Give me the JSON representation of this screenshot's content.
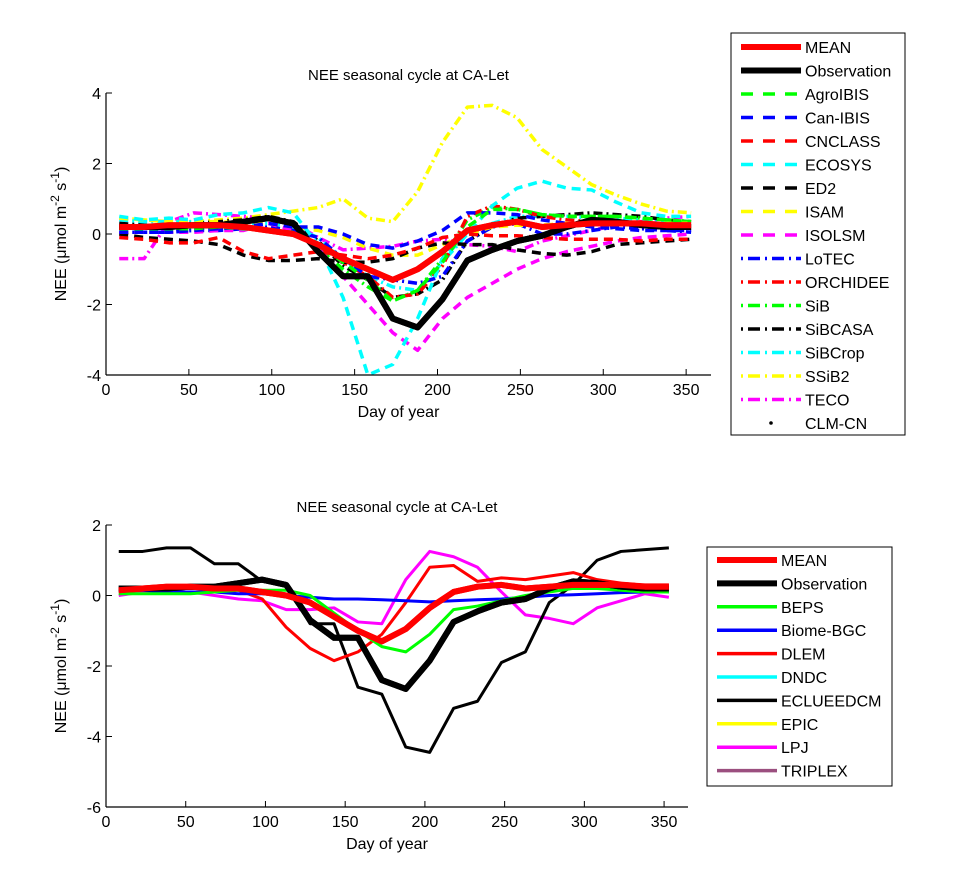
{
  "chart_data": [
    {
      "type": "line",
      "title": "NEE seasonal cycle at CA-Let",
      "xlabel": "Day of year",
      "ylabel": "NEE (μmol m^-2 s^-1)",
      "xlim": [
        0,
        365
      ],
      "ylim": [
        -4,
        4
      ],
      "xticks": [
        0,
        50,
        100,
        150,
        200,
        250,
        300,
        350
      ],
      "yticks": [
        -4,
        -2,
        0,
        2,
        4
      ],
      "grid": false,
      "legend_position": "outside-right",
      "x": [
        8,
        23,
        38,
        53,
        68,
        83,
        98,
        113,
        128,
        143,
        158,
        173,
        188,
        203,
        218,
        233,
        248,
        263,
        278,
        293,
        308,
        323,
        338,
        353
      ],
      "series": [
        {
          "name": "MEAN",
          "color": "#ff0000",
          "style": "solid",
          "width": "thick",
          "values": [
            0.2,
            0.2,
            0.25,
            0.25,
            0.25,
            0.2,
            0.1,
            0.0,
            -0.3,
            -0.7,
            -1.0,
            -1.3,
            -1.0,
            -0.5,
            0.1,
            0.25,
            0.35,
            0.2,
            0.25,
            0.3,
            0.3,
            0.3,
            0.25,
            0.25
          ]
        },
        {
          "name": "Observation",
          "color": "#000000",
          "style": "solid",
          "width": "thick",
          "values": [
            0.2,
            0.2,
            0.2,
            0.25,
            0.25,
            0.35,
            0.45,
            0.3,
            -0.5,
            -1.2,
            -1.2,
            -2.4,
            -2.65,
            -1.85,
            -0.75,
            -0.45,
            -0.2,
            -0.05,
            0.2,
            0.4,
            0.35,
            0.25,
            0.2,
            0.2
          ]
        },
        {
          "name": "AgroIBIS",
          "color": "#00ff00",
          "style": "dashed",
          "values": [
            0.15,
            0.15,
            0.15,
            0.15,
            0.2,
            0.15,
            0.1,
            0.05,
            -0.3,
            -0.8,
            -1.3,
            -1.9,
            -1.6,
            -0.8,
            0.2,
            0.7,
            0.7,
            0.55,
            0.5,
            0.5,
            0.5,
            0.45,
            0.4,
            0.35
          ]
        },
        {
          "name": "Can-IBIS",
          "color": "#0000ff",
          "style": "dashed",
          "values": [
            0.05,
            0.05,
            0.05,
            0.1,
            0.15,
            0.2,
            0.3,
            0.2,
            0.2,
            0.0,
            -0.3,
            -0.4,
            -0.2,
            0.1,
            0.6,
            0.6,
            0.55,
            0.4,
            0.3,
            0.2,
            0.15,
            0.1,
            0.1,
            0.1
          ]
        },
        {
          "name": "CNCLASS",
          "color": "#ff0000",
          "style": "dashed",
          "values": [
            -0.1,
            -0.15,
            -0.25,
            -0.25,
            -0.1,
            -0.5,
            -0.7,
            -0.6,
            -0.5,
            -0.6,
            -0.7,
            -0.6,
            -0.4,
            -0.1,
            0.0,
            -0.05,
            -0.05,
            -0.1,
            -0.15,
            -0.15,
            -0.15,
            -0.2,
            -0.15,
            -0.15
          ]
        },
        {
          "name": "ECOSYS",
          "color": "#00ffff",
          "style": "dashed",
          "values": [
            0.5,
            0.4,
            0.45,
            0.4,
            0.55,
            0.6,
            0.75,
            0.6,
            -0.3,
            -1.8,
            -4.0,
            -3.7,
            -2.4,
            -0.7,
            0.0,
            0.8,
            1.3,
            1.5,
            1.3,
            1.25,
            0.9,
            0.6,
            0.5,
            0.5
          ]
        },
        {
          "name": "ED2",
          "color": "#000000",
          "style": "dashed",
          "values": [
            0.0,
            -0.1,
            -0.15,
            -0.2,
            -0.3,
            -0.6,
            -0.75,
            -0.75,
            -0.7,
            -0.8,
            -0.8,
            -0.7,
            -0.4,
            -0.25,
            -0.3,
            -0.3,
            -0.45,
            -0.55,
            -0.6,
            -0.5,
            -0.3,
            -0.25,
            -0.2,
            -0.15
          ]
        },
        {
          "name": "ISAM",
          "color": "#ffff00",
          "style": "dashed",
          "values": [
            0.45,
            0.4,
            0.35,
            0.35,
            0.35,
            0.3,
            0.3,
            0.2,
            0.1,
            -0.1,
            -0.4,
            -0.6,
            -0.6,
            -0.3,
            0.0,
            0.2,
            0.25,
            0.25,
            0.3,
            0.3,
            0.3,
            0.3,
            0.3,
            0.3
          ]
        },
        {
          "name": "ISOLSM",
          "color": "#ff00ff",
          "style": "dashed",
          "values": [
            0.05,
            0.05,
            0.05,
            0.05,
            0.1,
            0.1,
            0.3,
            0.1,
            -0.4,
            -1.2,
            -2.0,
            -2.8,
            -3.3,
            -2.4,
            -1.8,
            -1.4,
            -1.0,
            -0.7,
            -0.5,
            -0.35,
            -0.2,
            -0.1,
            -0.05,
            0.0
          ]
        },
        {
          "name": "LoTEC",
          "color": "#0000ff",
          "style": "dashdot",
          "values": [
            0.05,
            0.05,
            0.05,
            0.1,
            0.1,
            0.15,
            0.2,
            0.1,
            -0.1,
            -0.7,
            -1.2,
            -1.3,
            -1.4,
            -1.2,
            -0.2,
            0.2,
            0.3,
            0.0,
            0.0,
            0.1,
            0.2,
            0.15,
            0.1,
            0.05
          ]
        },
        {
          "name": "ORCHIDEE",
          "color": "#ff0000",
          "style": "dashdot",
          "values": [
            0.2,
            0.2,
            0.25,
            0.25,
            0.25,
            0.2,
            0.1,
            0.0,
            -0.3,
            -0.8,
            -1.2,
            -1.8,
            -1.7,
            -0.9,
            0.5,
            0.8,
            0.7,
            0.5,
            0.4,
            0.35,
            0.3,
            0.3,
            0.25,
            0.25
          ]
        },
        {
          "name": "SiB",
          "color": "#00ff00",
          "style": "dashdot",
          "values": [
            0.2,
            0.2,
            0.15,
            0.15,
            0.2,
            0.15,
            0.1,
            0.05,
            -0.4,
            -1.0,
            -1.5,
            -1.9,
            -1.6,
            -0.7,
            0.4,
            0.75,
            0.7,
            0.55,
            0.5,
            0.5,
            0.5,
            0.45,
            0.4,
            0.35
          ]
        },
        {
          "name": "SiBCASA",
          "color": "#000000",
          "style": "dashdot",
          "values": [
            0.3,
            0.25,
            0.25,
            0.3,
            0.35,
            0.4,
            0.5,
            0.35,
            -0.2,
            -0.9,
            -1.3,
            -1.8,
            -1.7,
            -1.3,
            -0.2,
            0.2,
            0.45,
            0.5,
            0.55,
            0.6,
            0.55,
            0.5,
            0.4,
            0.35
          ]
        },
        {
          "name": "SiBCrop",
          "color": "#00ffff",
          "style": "dashdot",
          "values": [
            0.4,
            0.35,
            0.35,
            0.35,
            0.3,
            0.3,
            0.3,
            0.2,
            -0.1,
            -0.7,
            -1.2,
            -1.5,
            -1.6,
            -0.8,
            0.0,
            0.3,
            0.5,
            0.5,
            0.5,
            0.45,
            0.45,
            0.4,
            0.35,
            0.3
          ]
        },
        {
          "name": "SSiB2",
          "color": "#ffff00",
          "style": "dashdot",
          "values": [
            0.45,
            0.4,
            0.35,
            0.35,
            0.4,
            0.45,
            0.55,
            0.65,
            0.75,
            1.0,
            0.45,
            0.35,
            1.2,
            2.6,
            3.6,
            3.65,
            3.3,
            2.4,
            1.9,
            1.4,
            1.1,
            0.85,
            0.65,
            0.6
          ]
        },
        {
          "name": "TECO",
          "color": "#ff00ff",
          "style": "dashdot",
          "values": [
            -0.7,
            -0.7,
            0.35,
            0.6,
            0.55,
            0.5,
            0.45,
            0.3,
            -0.1,
            -0.45,
            -0.4,
            -0.35,
            -0.2,
            -0.15,
            -0.3,
            -0.35,
            -0.5,
            -0.2,
            -0.05,
            0.1,
            0.25,
            0.35,
            0.45,
            0.5
          ]
        },
        {
          "name": "CLM-CN",
          "color": "#000000",
          "style": "dot",
          "values": []
        }
      ]
    },
    {
      "type": "line",
      "title": "NEE seasonal cycle at CA-Let",
      "xlabel": "Day of year",
      "ylabel": "NEE (μmol m^-2 s^-1)",
      "xlim": [
        0,
        365
      ],
      "ylim": [
        -6,
        2
      ],
      "xticks": [
        0,
        50,
        100,
        150,
        200,
        250,
        300,
        350
      ],
      "yticks": [
        -6,
        -4,
        -2,
        0,
        2
      ],
      "grid": false,
      "legend_position": "outside-right",
      "x": [
        8,
        23,
        38,
        53,
        68,
        83,
        98,
        113,
        128,
        143,
        158,
        173,
        188,
        203,
        218,
        233,
        248,
        263,
        278,
        293,
        308,
        323,
        338,
        353
      ],
      "series": [
        {
          "name": "MEAN",
          "color": "#ff0000",
          "style": "solid",
          "width": "thick",
          "values": [
            0.15,
            0.2,
            0.25,
            0.25,
            0.2,
            0.2,
            0.1,
            0.0,
            -0.2,
            -0.6,
            -1.0,
            -1.3,
            -0.95,
            -0.35,
            0.1,
            0.25,
            0.3,
            0.2,
            0.25,
            0.3,
            0.3,
            0.3,
            0.25,
            0.25
          ]
        },
        {
          "name": "Observation",
          "color": "#000000",
          "style": "solid",
          "width": "thick",
          "values": [
            0.2,
            0.2,
            0.2,
            0.25,
            0.25,
            0.35,
            0.45,
            0.3,
            -0.7,
            -1.2,
            -1.2,
            -2.4,
            -2.65,
            -1.85,
            -0.75,
            -0.45,
            -0.2,
            -0.1,
            0.2,
            0.4,
            0.35,
            0.25,
            0.2,
            0.2
          ]
        },
        {
          "name": "BEPS",
          "color": "#00ff00",
          "style": "solid",
          "values": [
            0.05,
            0.05,
            0.05,
            0.05,
            0.1,
            0.15,
            0.15,
            0.15,
            0.0,
            -0.5,
            -1.0,
            -1.45,
            -1.6,
            -1.1,
            -0.4,
            -0.3,
            -0.15,
            0.0,
            0.1,
            0.2,
            0.2,
            0.15,
            0.1,
            0.1
          ]
        },
        {
          "name": "Biome-BGC",
          "color": "#0000ff",
          "style": "solid",
          "values": [
            0.15,
            0.15,
            0.1,
            0.1,
            0.1,
            0.05,
            0.05,
            0.0,
            -0.05,
            -0.1,
            -0.1,
            -0.12,
            -0.15,
            -0.18,
            -0.15,
            -0.12,
            -0.1,
            -0.05,
            0.0,
            0.02,
            0.05,
            0.08,
            0.1,
            0.1
          ]
        },
        {
          "name": "DLEM",
          "color": "#ff0000",
          "style": "solid",
          "values": [
            0.1,
            0.15,
            0.2,
            0.2,
            0.2,
            0.15,
            -0.1,
            -0.9,
            -1.5,
            -1.85,
            -1.6,
            -1.1,
            -0.2,
            0.8,
            0.85,
            0.4,
            0.5,
            0.45,
            0.55,
            0.65,
            0.45,
            0.35,
            0.3,
            0.3
          ]
        },
        {
          "name": "DNDC",
          "color": "#00ffff",
          "style": "solid",
          "values": []
        },
        {
          "name": "ECLUEEDCM",
          "color": "#000000",
          "style": "solid",
          "values": [
            1.25,
            1.25,
            1.35,
            1.35,
            0.9,
            0.9,
            0.4,
            0.3,
            -0.8,
            -0.8,
            -2.6,
            -2.8,
            -4.3,
            -4.45,
            -3.2,
            -3.0,
            -1.9,
            -1.6,
            -0.2,
            0.3,
            1.0,
            1.25,
            1.3,
            1.35
          ]
        },
        {
          "name": "EPIC",
          "color": "#ffff00",
          "style": "solid",
          "values": []
        },
        {
          "name": "LPJ",
          "color": "#ff00ff",
          "style": "solid",
          "values": [
            0.0,
            0.1,
            0.1,
            0.1,
            0.0,
            -0.1,
            -0.15,
            -0.4,
            -0.4,
            -0.35,
            -0.75,
            -0.8,
            0.45,
            1.25,
            1.1,
            0.8,
            0.1,
            -0.55,
            -0.65,
            -0.8,
            -0.35,
            -0.15,
            0.05,
            -0.05
          ]
        },
        {
          "name": "TRIPLEX",
          "color": "#9b4f7f",
          "style": "solid",
          "values": []
        }
      ]
    }
  ]
}
